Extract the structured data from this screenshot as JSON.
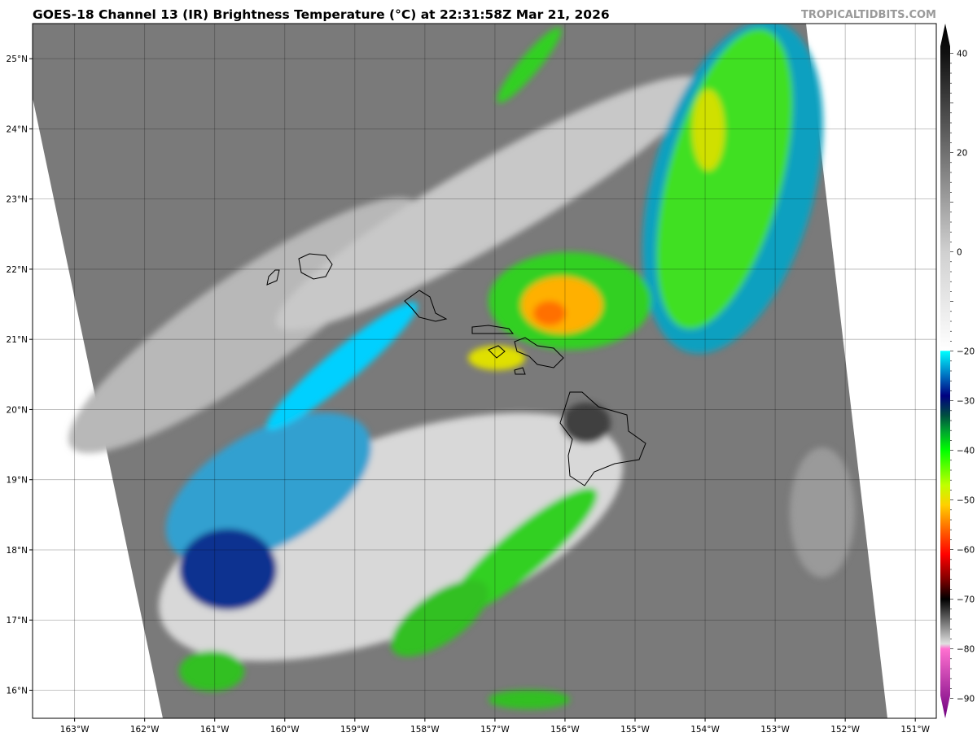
{
  "title": "GOES-18 Channel 13 (IR) Brightness Temperature (°C) at 22:31:58Z Mar 21, 2026",
  "watermark": "TROPICALTIDBITS.COM",
  "map": {
    "lon_labels": [
      "163°W",
      "162°W",
      "161°W",
      "160°W",
      "159°W",
      "158°W",
      "157°W",
      "156°W",
      "155°W",
      "154°W",
      "153°W",
      "152°W",
      "151°W"
    ],
    "lon_values": [
      -163,
      -162,
      -161,
      -160,
      -159,
      -158,
      -157,
      -156,
      -155,
      -154,
      -153,
      -152,
      -151
    ],
    "lat_labels": [
      "25°N",
      "24°N",
      "23°N",
      "22°N",
      "21°N",
      "20°N",
      "19°N",
      "18°N",
      "17°N",
      "16°N"
    ],
    "lat_values": [
      25,
      24,
      23,
      22,
      21,
      20,
      19,
      18,
      17,
      16
    ],
    "extent": {
      "lon": [
        -163.6,
        -150.7
      ],
      "lat": [
        15.6,
        25.5
      ]
    },
    "grid": true
  },
  "colorbar": {
    "ticks": [
      "40",
      "20",
      "0",
      "−20",
      "−30",
      "−40",
      "−50",
      "−60",
      "−70",
      "−80",
      "−90"
    ],
    "tick_values": [
      40,
      20,
      0,
      -20,
      -30,
      -40,
      -50,
      -60,
      -70,
      -80,
      -90
    ],
    "range": [
      -94,
      46
    ],
    "stops": [
      {
        "v": 46,
        "c": "#000000"
      },
      {
        "v": 40,
        "c": "#111111"
      },
      {
        "v": 20,
        "c": "#707070"
      },
      {
        "v": 0,
        "c": "#d0d0d0"
      },
      {
        "v": -19.9,
        "c": "#ffffff"
      },
      {
        "v": -20,
        "c": "#00ffff"
      },
      {
        "v": -25,
        "c": "#0070c0"
      },
      {
        "v": -29,
        "c": "#000080"
      },
      {
        "v": -33,
        "c": "#005040"
      },
      {
        "v": -36,
        "c": "#00a030"
      },
      {
        "v": -40,
        "c": "#00ff00"
      },
      {
        "v": -47,
        "c": "#c0ff00"
      },
      {
        "v": -51,
        "c": "#ffd000"
      },
      {
        "v": -57,
        "c": "#ff5000"
      },
      {
        "v": -61,
        "c": "#ff0000"
      },
      {
        "v": -66,
        "c": "#800000"
      },
      {
        "v": -70,
        "c": "#000000"
      },
      {
        "v": -79,
        "c": "#e0e0e0"
      },
      {
        "v": -80,
        "c": "#ff70d0"
      },
      {
        "v": -94,
        "c": "#700080"
      }
    ]
  }
}
